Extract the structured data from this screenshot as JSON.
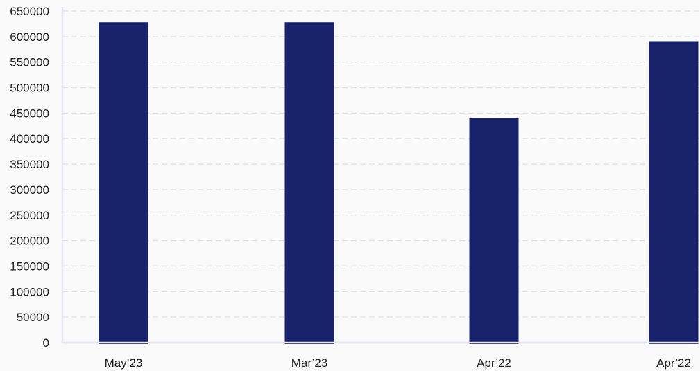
{
  "chart_data": {
    "type": "bar",
    "categories": [
      "May’23",
      "Mar’23",
      "Apr’22",
      "Apr’22"
    ],
    "values": [
      628000,
      628000,
      440000,
      591000
    ],
    "title": "",
    "xlabel": "",
    "ylabel": "",
    "ylim": [
      0,
      650000
    ],
    "yticks": [
      0,
      50000,
      100000,
      150000,
      200000,
      250000,
      300000,
      350000,
      400000,
      450000,
      500000,
      550000,
      600000,
      650000
    ],
    "grid": true,
    "legend": "none",
    "bar_color": "#17226b"
  }
}
